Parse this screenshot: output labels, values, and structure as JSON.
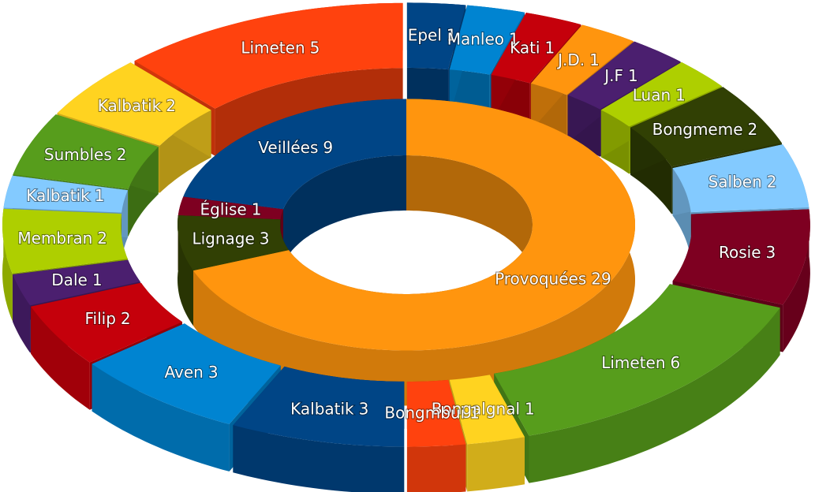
{
  "chart_data": {
    "type": "donut3d",
    "series": [
      {
        "categories": [
          "Provoquées",
          "Lignage",
          "Église",
          "Veillées"
        ],
        "values": [
          29,
          3,
          1,
          9
        ],
        "colors": [
          "#ff950e",
          "#314004",
          "#7e0021",
          "#004586"
        ]
      },
      {
        "categories": [
          "Epel",
          "Manleo",
          "Kati",
          "J.D.",
          "J.F",
          "Luan",
          "Bongmeme",
          "Salben",
          "Rosie",
          "Limeten",
          "Bongalgnal",
          "Bongmbui",
          "Kalbatik",
          "Aven",
          "Filip",
          "Dale",
          "Membran",
          "Kalbatik",
          "Sumbles",
          "Kalbatik",
          "Limeten"
        ],
        "values": [
          1,
          1,
          1,
          1,
          1,
          1,
          2,
          2,
          3,
          6,
          1,
          1,
          3,
          3,
          2,
          1,
          2,
          1,
          2,
          2,
          5
        ],
        "colors": [
          "#004586",
          "#0084d1",
          "#c5000b",
          "#ff950e",
          "#4b1f6f",
          "#aecf00",
          "#314004",
          "#83caff",
          "#7e0021",
          "#579d1c",
          "#ffd320",
          "#ff420e",
          "#004586",
          "#0084d1",
          "#c5000b",
          "#4b1f6f",
          "#aecf00",
          "#83caff",
          "#579d1c",
          "#ffd320",
          "#ff420e"
        ]
      }
    ]
  }
}
